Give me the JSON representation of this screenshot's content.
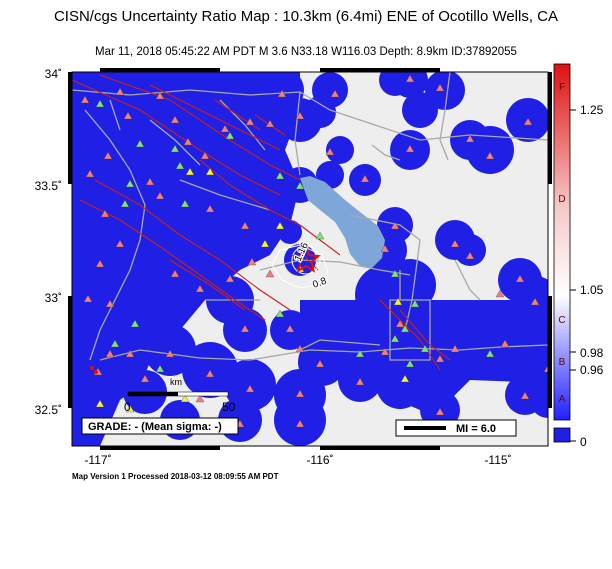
{
  "header": {
    "title": "CISN/cgs Uncertainty Ratio Map : 10.3km (6.4mi) ENE of Ocotillo Wells, CA",
    "subtitle": "Mar 11, 2018 05:45:22 AM PDT   M 3.6   N33.18 W116.03   Depth: 8.9km   ID:37892055"
  },
  "map": {
    "lat_labels": [
      "34˚",
      "33.5˚",
      "33˚",
      "32.5˚"
    ],
    "lon_labels": [
      "-117˚",
      "-116˚",
      "-115˚"
    ],
    "contour_labels": [
      "1.16",
      "0.8"
    ],
    "scale_bar_labels": [
      "0",
      "50"
    ],
    "scale_bar_units": "km",
    "grade_box": "GRADE: - (Mean sigma: -)",
    "mi_legend": "MI = 6.0",
    "colors": {
      "uncertainty_blue": "#1f1fe6",
      "background_gray": "#eeeeee",
      "water": "#7fa6d9",
      "fault_red": "#c82020",
      "station_red": "#f08080",
      "station_green": "#7ee07e",
      "station_yellow": "#f0f040",
      "road_gray": "#a8a8a8",
      "epicenter_star": "#e01010"
    }
  },
  "colorbar": {
    "grades": [
      "F",
      "D",
      "C",
      "B",
      "A"
    ],
    "ticks": [
      "1.25",
      "1.05",
      "0.98",
      "0.96",
      "0"
    ]
  },
  "footer": {
    "text": "Map Version 1 Processed 2018-03-12 08:09:55 AM PDT"
  }
}
